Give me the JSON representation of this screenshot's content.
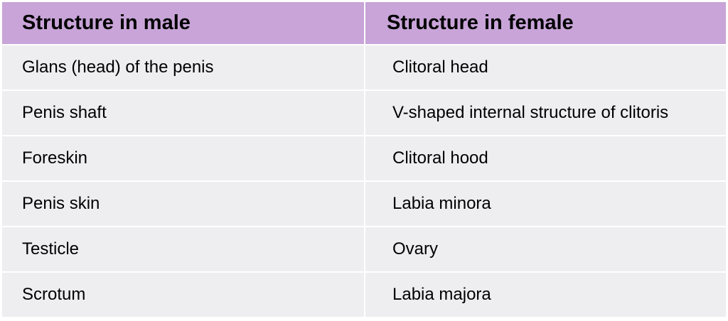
{
  "table": {
    "header": [
      "Structure in male",
      "Structure in female"
    ],
    "rows": [
      [
        "Glans (head) of the penis",
        "Clitoral head"
      ],
      [
        "Penis shaft",
        "V-shaped internal structure of clitoris"
      ],
      [
        "Foreskin",
        "Clitoral hood"
      ],
      [
        "Penis skin",
        "Labia minora"
      ],
      [
        "Testicle",
        "Ovary"
      ],
      [
        "Scrotum",
        "Labia majora"
      ]
    ]
  }
}
